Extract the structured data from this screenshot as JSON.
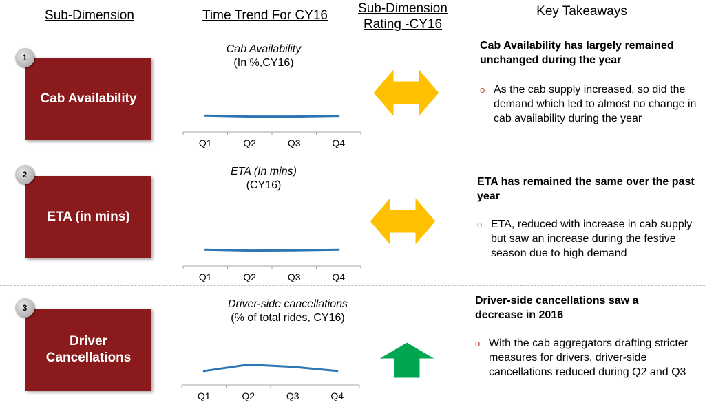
{
  "headers": {
    "sub_dimension": "Sub-Dimension",
    "time_trend": "Time Trend For CY16",
    "rating_line1": "Sub-Dimension",
    "rating_line2": "Rating -CY16",
    "takeaways": "Key Takeaways"
  },
  "rows": [
    {
      "number": "1",
      "dimension": "Cab Availability",
      "chart_title_italic": "Cab Availability",
      "chart_title_plain": "(In %,CY16)",
      "rating": "neutral",
      "rating_color": "#ffc000",
      "takeaway_title": "Cab Availability has largely remained unchanged during the year",
      "takeaway_bullet": "As the cab supply increased, so did the demand which led to almost no change in cab availability during the year"
    },
    {
      "number": "2",
      "dimension": "ETA (in mins)",
      "chart_title_italic": "ETA (In mins)",
      "chart_title_plain": "(CY16)",
      "rating": "neutral",
      "rating_color": "#ffc000",
      "takeaway_title": "ETA has remained the same over the past year",
      "takeaway_bullet": "ETA, reduced with increase in cab supply but saw an increase during the festive season due to high demand"
    },
    {
      "number": "3",
      "dimension": "Driver Cancellations",
      "chart_title_italic": "Driver-side cancellations",
      "chart_title_plain": "(% of total rides, CY16)",
      "rating": "improving",
      "rating_color": "#00a651",
      "takeaway_title": "Driver-side cancellations saw a decrease in 2016",
      "takeaway_bullet": "With the cab aggregators drafting stricter measures for drivers, driver-side cancellations reduced during Q2 and Q3"
    }
  ],
  "colors": {
    "dimension_box": "#8b1a1c",
    "line": "#2e75b6",
    "bullet_marker": "#c0392b"
  },
  "chart_data": [
    {
      "type": "line",
      "title": "Cab Availability",
      "subtitle": "(In %,CY16)",
      "categories": [
        "Q1",
        "Q2",
        "Q3",
        "Q4"
      ],
      "values": [
        74,
        70,
        70,
        73
      ],
      "ylim": [
        0,
        100
      ]
    },
    {
      "type": "line",
      "title": "ETA (In mins)",
      "subtitle": "(CY16)",
      "categories": [
        "Q1",
        "Q2",
        "Q3",
        "Q4"
      ],
      "values": [
        74,
        70,
        71,
        74
      ],
      "ylim": [
        0,
        100
      ]
    },
    {
      "type": "line",
      "title": "Driver-side cancellations",
      "subtitle": "(% of total rides, CY16)",
      "categories": [
        "Q1",
        "Q2",
        "Q3",
        "Q4"
      ],
      "values": [
        6,
        18,
        14,
        6
      ],
      "ylim": [
        -20,
        60
      ]
    }
  ]
}
